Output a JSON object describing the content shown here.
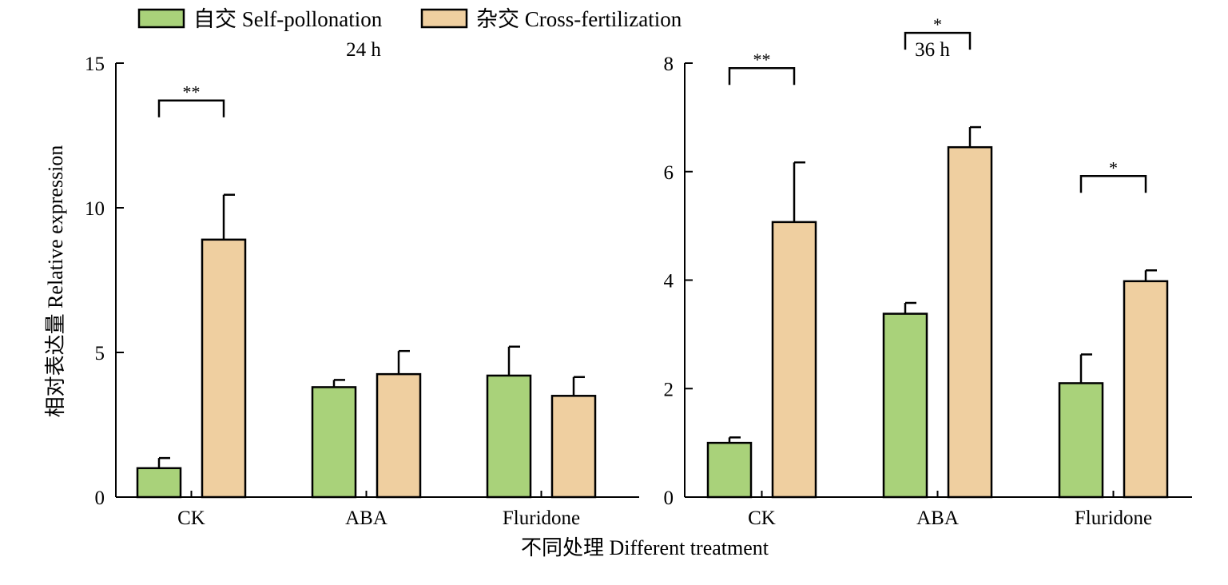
{
  "chart_data": [
    {
      "type": "bar",
      "title": "24 h",
      "categories": [
        "CK",
        "ABA",
        "Fluridone"
      ],
      "ylim": [
        0,
        15
      ],
      "yticks": [
        0,
        5,
        10,
        15
      ],
      "series": [
        {
          "name": "自交 Self-pollonation",
          "values": [
            1.0,
            3.8,
            4.2
          ],
          "errors": [
            0.35,
            0.25,
            1.0
          ]
        },
        {
          "name": "杂交 Cross-fertilization",
          "values": [
            8.9,
            4.25,
            3.5
          ],
          "errors": [
            1.55,
            0.8,
            0.65
          ]
        }
      ],
      "significance": [
        {
          "category": "CK",
          "label": "**"
        },
        {
          "category": "ABA",
          "label": ""
        },
        {
          "category": "Fluridone",
          "label": ""
        }
      ]
    },
    {
      "type": "bar",
      "title": "36 h",
      "categories": [
        "CK",
        "ABA",
        "Fluridone"
      ],
      "ylim": [
        0,
        8
      ],
      "yticks": [
        0,
        2,
        4,
        6,
        8
      ],
      "series": [
        {
          "name": "自交 Self-pollonation",
          "values": [
            1.0,
            3.38,
            2.1
          ],
          "errors": [
            0.1,
            0.2,
            0.53
          ]
        },
        {
          "name": "杂交 Cross-fertilization",
          "values": [
            5.07,
            6.45,
            3.98
          ],
          "errors": [
            1.1,
            0.37,
            0.2
          ]
        }
      ],
      "significance": [
        {
          "category": "CK",
          "label": "**"
        },
        {
          "category": "ABA",
          "label": "*"
        },
        {
          "category": "Fluridone",
          "label": "*"
        }
      ]
    }
  ],
  "legend": [
    {
      "label": "自交 Self-pollonation",
      "color": "#a9d27a"
    },
    {
      "label": "杂交 Cross-fertilization",
      "color": "#efcfa0"
    }
  ],
  "ylabel": "相对表达量 Relative expression",
  "xlabel": "不同处理 Different treatment",
  "colors": {
    "self": "#a9d27a",
    "cross": "#efcfa0",
    "stroke": "#000000"
  }
}
